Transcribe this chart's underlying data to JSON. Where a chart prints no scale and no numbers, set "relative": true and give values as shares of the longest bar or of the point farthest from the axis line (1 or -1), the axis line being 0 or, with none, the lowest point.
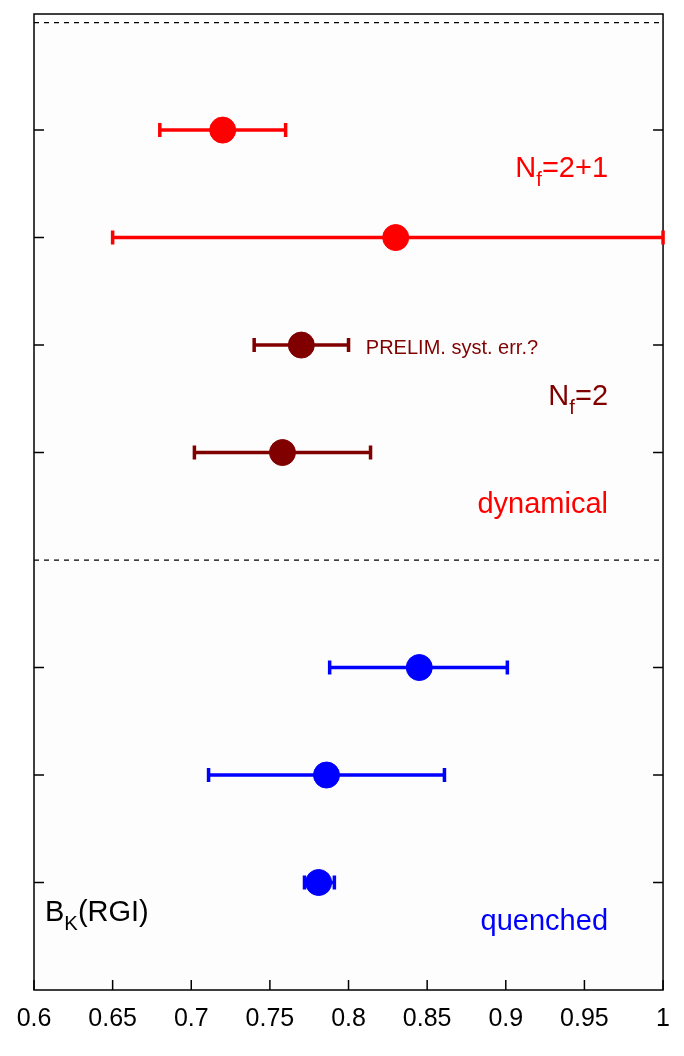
{
  "chart_data": {
    "type": "scatter",
    "relative": true,
    "series": [
      {
        "name": "N$_{f}$=2+1",
        "color": "#ff0000",
        "x": [
          0.72,
          0.83
        ],
        "values": [
          1,
          0.875
        ],
        "xerrors": [
          [
            0.68,
            0.76
          ],
          [
            0.65,
            1.0
          ]
        ]
      },
      {
        "name": "N$_{f}$=2",
        "color": "#800000",
        "x": [
          0.77,
          0.758
        ],
        "values": [
          0.75,
          0.625
        ],
        "xerrors": [
          [
            0.74,
            0.8
          ],
          [
            0.702,
            0.814
          ]
        ]
      },
      {
        "name": "quenched",
        "color": "#0000ff",
        "x": [
          0.845,
          0.786,
          0.781
        ],
        "values": [
          0.375,
          0.25,
          0.125
        ],
        "xerrors": [
          [
            0.788,
            0.901
          ],
          [
            0.711,
            0.861
          ],
          [
            0.772,
            0.791
          ]
        ]
      }
    ],
    "xlim": [
      0.6,
      1.0
    ],
    "xticks": [
      0.6,
      0.65,
      0.7,
      0.75,
      0.8,
      0.85,
      0.9,
      0.95,
      1
    ],
    "tick_labels": "x",
    "marker": "circle",
    "ref_lines": [
      {
        "axis": "y",
        "value": 1.125,
        "line_style": "dashed",
        "color": "#000000"
      },
      {
        "axis": "y",
        "value": 0.5,
        "line_style": "dashed",
        "color": "#000000"
      }
    ],
    "annotations": [
      "PRELIM. syst. err.?",
      "dynamical",
      "B$_{K}$(RGI)"
    ]
  }
}
